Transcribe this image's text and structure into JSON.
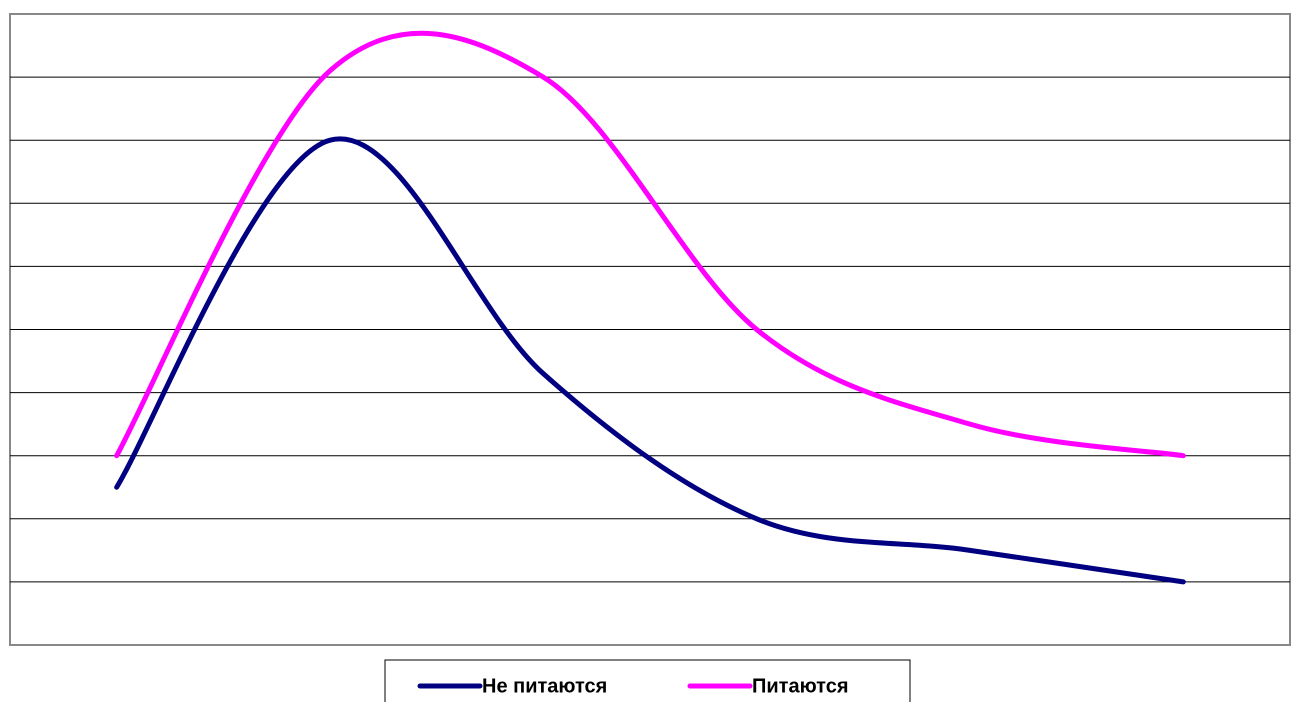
{
  "chart_data": {
    "type": "line",
    "categories": [
      null,
      null,
      null,
      null,
      null,
      null
    ],
    "series": [
      {
        "name": "Не питаются",
        "color": "#000080",
        "values": [
          2.5,
          8.0,
          4.3,
          2.0,
          1.5,
          1.0
        ]
      },
      {
        "name": "Питаются",
        "color": "#ff00ff",
        "values": [
          3.0,
          9.1,
          9.0,
          5.0,
          3.5,
          3.0
        ]
      }
    ],
    "ylim": [
      0,
      10
    ],
    "yticks": [
      1,
      2,
      3,
      4,
      5,
      6,
      7,
      8,
      9
    ],
    "grid": true,
    "smooth": true,
    "legend": "bottom"
  }
}
